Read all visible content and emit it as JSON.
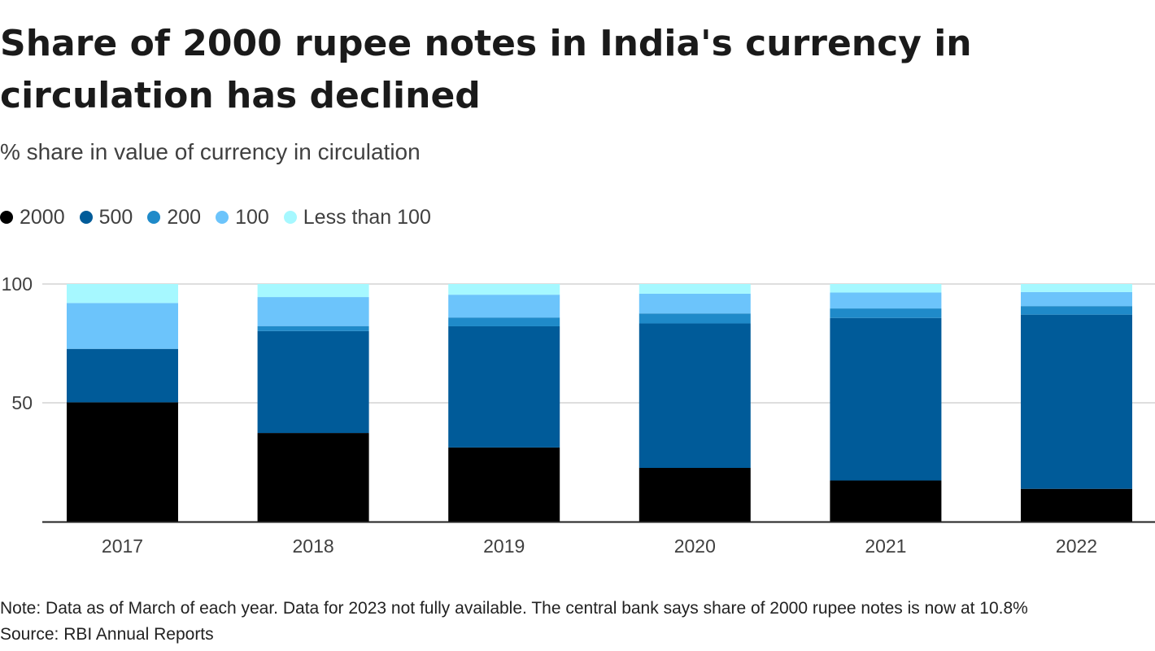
{
  "chart_data": {
    "type": "bar",
    "stacked": true,
    "title": "Share of 2000 rupee notes in India's currency in circulation has declined",
    "subtitle": "% share in value of currency in circulation",
    "categories": [
      "2017",
      "2018",
      "2019",
      "2020",
      "2021",
      "2022"
    ],
    "series": [
      {
        "name": "2000",
        "color": "#000000",
        "values": [
          50.2,
          37.3,
          31.2,
          22.6,
          17.3,
          13.8
        ]
      },
      {
        "name": "500",
        "color": "#005b99",
        "values": [
          22.5,
          42.9,
          51.0,
          60.8,
          68.4,
          73.3
        ]
      },
      {
        "name": "200",
        "color": "#1f8ac9",
        "values": [
          0,
          2.1,
          3.7,
          4.2,
          4.0,
          3.6
        ]
      },
      {
        "name": "100",
        "color": "#6cc4fb",
        "values": [
          19.3,
          12.2,
          9.6,
          8.3,
          6.7,
          5.9
        ]
      },
      {
        "name": "Less than 100",
        "color": "#a6f8ff",
        "values": [
          8.0,
          5.5,
          4.5,
          4.1,
          3.6,
          3.4
        ]
      }
    ],
    "y_ticks": [
      50,
      100
    ],
    "ylim": [
      0,
      100
    ],
    "grid": true,
    "legend_position": "top-left"
  },
  "footer": {
    "note": "Note: Data as of March of each year. Data for 2023 not fully available. The central bank says share of 2000 rupee notes is now at 10.8%",
    "source": "Source: RBI Annual Reports"
  }
}
